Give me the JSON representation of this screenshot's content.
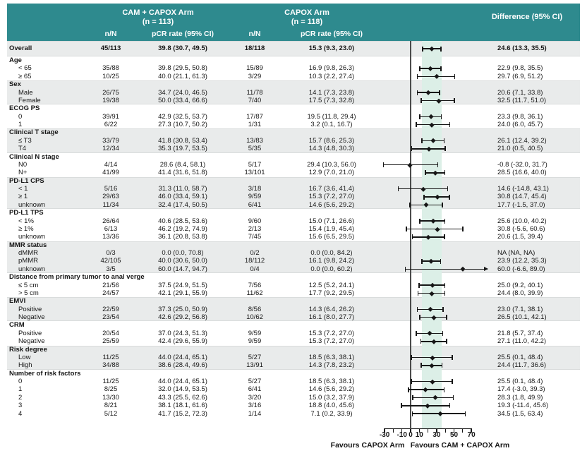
{
  "chart_data": {
    "type": "table",
    "subtype": "forest-plot-subgroup-analysis",
    "header": {
      "arm1_title": "CAM + CAPOX Arm",
      "arm1_n": "(n = 113)",
      "arm2_title": "CAPOX Arm",
      "arm2_n": "(n = 118)",
      "diff_title": "Difference (95% CI)",
      "col_nn": "n/N",
      "col_pcr": "pCR rate (95% CI)"
    },
    "colors": {
      "header_teal": "#2e8a8e",
      "row_gray": "#e9ebeb",
      "overall_ci_band": "#dcefe7",
      "marker": "#161616"
    },
    "overall": {
      "label": "Overall",
      "n1": "45/113",
      "p1": "39.8 (30.7, 49.5)",
      "n2": "18/118",
      "p2": "15.3 (9.3, 23.0)",
      "diff": "24.6 (13.3, 35.5)",
      "est": 24.6,
      "lo": 13.3,
      "hi": 35.5,
      "shaded": true
    },
    "shaded_band": [
      13.3,
      35.5
    ],
    "groups": [
      {
        "label": "Age",
        "shaded": false,
        "items": [
          {
            "label": "< 65",
            "n1": "35/88",
            "p1": "39.8 (29.5, 50.8)",
            "n2": "15/89",
            "p2": "16.9 (9.8, 26.3)",
            "diff": "22.9 (9.8, 35.5)",
            "est": 22.9,
            "lo": 9.8,
            "hi": 35.5
          },
          {
            "label": "≥ 65",
            "n1": "10/25",
            "p1": "40.0 (21.1, 61.3)",
            "n2": "3/29",
            "p2": "10.3 (2.2, 27.4)",
            "diff": "29.7 (6.9, 51.2)",
            "est": 29.7,
            "lo": 6.9,
            "hi": 51.2
          }
        ]
      },
      {
        "label": "Sex",
        "shaded": true,
        "items": [
          {
            "label": "Male",
            "n1": "26/75",
            "p1": "34.7 (24.0, 46.5)",
            "n2": "11/78",
            "p2": "14.1 (7.3, 23.8)",
            "diff": "20.6 (7.1, 33.8)",
            "est": 20.6,
            "lo": 7.1,
            "hi": 33.8
          },
          {
            "label": "Female",
            "n1": "19/38",
            "p1": "50.0 (33.4, 66.6)",
            "n2": "7/40",
            "p2": "17.5 (7.3, 32.8)",
            "diff": "32.5 (11.7, 51.0)",
            "est": 32.5,
            "lo": 11.7,
            "hi": 51.0
          }
        ]
      },
      {
        "label": "ECOG PS",
        "shaded": false,
        "items": [
          {
            "label": "0",
            "n1": "39/91",
            "p1": "42.9 (32.5, 53.7)",
            "n2": "17/87",
            "p2": "19.5 (11.8, 29.4)",
            "diff": "23.3 (9.8, 36.1)",
            "est": 23.3,
            "lo": 9.8,
            "hi": 36.1
          },
          {
            "label": "1",
            "n1": "6/22",
            "p1": "27.3 (10.7, 50.2)",
            "n2": "1/31",
            "p2": "3.2 (0.1, 16.7)",
            "diff": "24.0 (6.0, 45.7)",
            "est": 24.0,
            "lo": 6.0,
            "hi": 45.7
          }
        ]
      },
      {
        "label": "Clinical T stage",
        "shaded": true,
        "items": [
          {
            "label": "≤ T3",
            "n1": "33/79",
            "p1": "41.8 (30.8, 53.4)",
            "n2": "13/83",
            "p2": "15.7 (8.6, 25.3)",
            "diff": "26.1 (12.4, 39.2)",
            "est": 26.1,
            "lo": 12.4,
            "hi": 39.2
          },
          {
            "label": "T4",
            "n1": "12/34",
            "p1": "35.3 (19.7, 53.5)",
            "n2": "5/35",
            "p2": "14.3 (4.8, 30.3)",
            "diff": "21.0 (0.5, 40.5)",
            "est": 21.0,
            "lo": 0.5,
            "hi": 40.5
          }
        ]
      },
      {
        "label": "Clinical N stage",
        "shaded": false,
        "items": [
          {
            "label": "N0",
            "n1": "4/14",
            "p1": "28.6 (8.4, 58.1)",
            "n2": "5/17",
            "p2": "29.4 (10.3, 56.0)",
            "diff": "-0.8 (-32.0, 31.7)",
            "est": -0.8,
            "lo": -32.0,
            "hi": 31.7
          },
          {
            "label": "N+",
            "n1": "41/99",
            "p1": "41.4 (31.6, 51.8)",
            "n2": "13/101",
            "p2": "12.9 (7.0, 21.0)",
            "diff": "28.5 (16.6, 40.0)",
            "est": 28.5,
            "lo": 16.6,
            "hi": 40.0
          }
        ]
      },
      {
        "label": "PD-L1 CPS",
        "shaded": true,
        "items": [
          {
            "label": "< 1",
            "n1": "5/16",
            "p1": "31.3 (11.0, 58.7)",
            "n2": "3/18",
            "p2": "16.7 (3.6, 41.4)",
            "diff": "14.6 (-14.8, 43.1)",
            "est": 14.6,
            "lo": -14.8,
            "hi": 43.1
          },
          {
            "label": "≥ 1",
            "n1": "29/63",
            "p1": "46.0 (33.4, 59.1)",
            "n2": "9/59",
            "p2": "15.3 (7.2, 27.0)",
            "diff": "30.8 (14.7, 45.4)",
            "est": 30.8,
            "lo": 14.7,
            "hi": 45.4
          },
          {
            "label": "unknown",
            "n1": "11/34",
            "p1": "32.4 (17.4, 50.5)",
            "n2": "6/41",
            "p2": "14.6 (5.6, 29.2)",
            "diff": "17.7 (-1.5, 37.0)",
            "est": 17.7,
            "lo": -1.5,
            "hi": 37.0
          }
        ]
      },
      {
        "label": "PD-L1 TPS",
        "shaded": false,
        "items": [
          {
            "label": "< 1%",
            "n1": "26/64",
            "p1": "40.6 (28.5, 53.6)",
            "n2": "9/60",
            "p2": "15.0 (7.1, 26.6)",
            "diff": "25.6 (10.0, 40.2)",
            "est": 25.6,
            "lo": 10.0,
            "hi": 40.2
          },
          {
            "label": "≥ 1%",
            "n1": "6/13",
            "p1": "46.2 (19.2, 74.9)",
            "n2": "2/13",
            "p2": "15.4 (1.9, 45.4)",
            "diff": "30.8 (-5.6, 60.6)",
            "est": 30.8,
            "lo": -5.6,
            "hi": 60.6
          },
          {
            "label": "unknown",
            "n1": "13/36",
            "p1": "36.1 (20.8, 53.8)",
            "n2": "7/45",
            "p2": "15.6 (6.5, 29.5)",
            "diff": "20.6 (1.5, 39.4)",
            "est": 20.6,
            "lo": 1.5,
            "hi": 39.4
          }
        ]
      },
      {
        "label": "MMR status",
        "shaded": true,
        "items": [
          {
            "label": "dMMR",
            "n1": "0/3",
            "p1": "0.0 (0.0, 70.8)",
            "n2": "0/2",
            "p2": "0.0 (0.0, 84.2)",
            "diff": "NA (NA, NA)",
            "est": null,
            "lo": null,
            "hi": null
          },
          {
            "label": "pMMR",
            "n1": "42/105",
            "p1": "40.0 (30.6, 50.0)",
            "n2": "18/112",
            "p2": "16.1 (9.8, 24.2)",
            "diff": "23.9 (12.2, 35.3)",
            "est": 23.9,
            "lo": 12.2,
            "hi": 35.3
          },
          {
            "label": "unknown",
            "n1": "3/5",
            "p1": "60.0 (14.7, 94.7)",
            "n2": "0/4",
            "p2": "0.0 (0.0, 60.2)",
            "diff": "60.0 (-6.6, 89.0)",
            "est": 60.0,
            "lo": -6.6,
            "hi": 89.0
          }
        ]
      },
      {
        "label": "Distance from primary tumor to anal verge",
        "shaded": false,
        "items": [
          {
            "label": "≤ 5 cm",
            "n1": "21/56",
            "p1": "37.5 (24.9, 51.5)",
            "n2": "7/56",
            "p2": "12.5 (5.2, 24.1)",
            "diff": "25.0 (9.2, 40.1)",
            "est": 25.0,
            "lo": 9.2,
            "hi": 40.1
          },
          {
            "label": "> 5 cm",
            "n1": "24/57",
            "p1": "42.1 (29.1, 55.9)",
            "n2": "11/62",
            "p2": "17.7 (9.2, 29.5)",
            "diff": "24.4 (8.0, 39.9)",
            "est": 24.4,
            "lo": 8.0,
            "hi": 39.9
          }
        ]
      },
      {
        "label": "EMVI",
        "shaded": true,
        "items": [
          {
            "label": "Positive",
            "n1": "22/59",
            "p1": "37.3 (25.0, 50.9)",
            "n2": "8/56",
            "p2": "14.3 (6.4, 26.2)",
            "diff": "23.0 (7.1, 38.1)",
            "est": 23.0,
            "lo": 7.1,
            "hi": 38.1
          },
          {
            "label": "Negative",
            "n1": "23/54",
            "p1": "42.6 (29.2, 56.8)",
            "n2": "10/62",
            "p2": "16.1 (8.0, 27.7)",
            "diff": "26.5 (10.1, 42.1)",
            "est": 26.5,
            "lo": 10.1,
            "hi": 42.1
          }
        ]
      },
      {
        "label": "CRM",
        "shaded": false,
        "items": [
          {
            "label": "Positive",
            "n1": "20/54",
            "p1": "37.0 (24.3, 51.3)",
            "n2": "9/59",
            "p2": "15.3 (7.2, 27.0)",
            "diff": "21.8 (5.7, 37.4)",
            "est": 21.8,
            "lo": 5.7,
            "hi": 37.4
          },
          {
            "label": "Negative",
            "n1": "25/59",
            "p1": "42.4 (29.6, 55.9)",
            "n2": "9/59",
            "p2": "15.3 (7.2, 27.0)",
            "diff": "27.1 (11.0, 42.2)",
            "est": 27.1,
            "lo": 11.0,
            "hi": 42.2
          }
        ]
      },
      {
        "label": "Risk degree",
        "shaded": true,
        "items": [
          {
            "label": "Low",
            "n1": "11/25",
            "p1": "44.0 (24.4, 65.1)",
            "n2": "5/27",
            "p2": "18.5 (6.3, 38.1)",
            "diff": "25.5 (0.1, 48.4)",
            "est": 25.5,
            "lo": 0.1,
            "hi": 48.4
          },
          {
            "label": "High",
            "n1": "34/88",
            "p1": "38.6 (28.4, 49.6)",
            "n2": "13/91",
            "p2": "14.3 (7.8, 23.2)",
            "diff": "24.4 (11.7, 36.6)",
            "est": 24.4,
            "lo": 11.7,
            "hi": 36.6
          }
        ]
      },
      {
        "label": "Number of risk factors",
        "shaded": false,
        "items": [
          {
            "label": "0",
            "n1": "11/25",
            "p1": "44.0 (24.4, 65.1)",
            "n2": "5/27",
            "p2": "18.5 (6.3, 38.1)",
            "diff": "25.5 (0.1, 48.4)",
            "est": 25.5,
            "lo": 0.1,
            "hi": 48.4
          },
          {
            "label": "1",
            "n1": "8/25",
            "p1": "32.0 (14.9, 53.5)",
            "n2": "6/41",
            "p2": "14.6 (5.6, 29.2)",
            "diff": "17.4 (-3.0, 39.3)",
            "est": 17.4,
            "lo": -3.0,
            "hi": 39.3
          },
          {
            "label": "2",
            "n1": "13/30",
            "p1": "43.3 (25.5, 62.6)",
            "n2": "3/20",
            "p2": "15.0 (3.2, 37.9)",
            "diff": "28.3 (1.8, 49.9)",
            "est": 28.3,
            "lo": 1.8,
            "hi": 49.9
          },
          {
            "label": "3",
            "n1": "8/21",
            "p1": "38.1 (18.1, 61.6)",
            "n2": "3/16",
            "p2": "18.8 (4.0, 45.6)",
            "diff": "19.3 (-11.4, 45.6)",
            "est": 19.3,
            "lo": -11.4,
            "hi": 45.6
          },
          {
            "label": "4",
            "n1": "5/12",
            "p1": "41.7 (15.2, 72.3)",
            "n2": "1/14",
            "p2": "7.1 (0.2, 33.9)",
            "diff": "34.5 (1.5, 63.4)",
            "est": 34.5,
            "lo": 1.5,
            "hi": 63.4
          }
        ]
      }
    ],
    "axis": {
      "min": -30,
      "max": 70,
      "ticks": [
        -30,
        -20,
        -10,
        0,
        10,
        20,
        30,
        40,
        50,
        60,
        70
      ],
      "tick_labels": [
        "-30",
        "-10",
        "0",
        "10",
        "30",
        "50",
        "70"
      ]
    },
    "footer": {
      "left": "Favours CAPOX Arm",
      "right": "Favours CAM + CAPOX Arm"
    }
  }
}
